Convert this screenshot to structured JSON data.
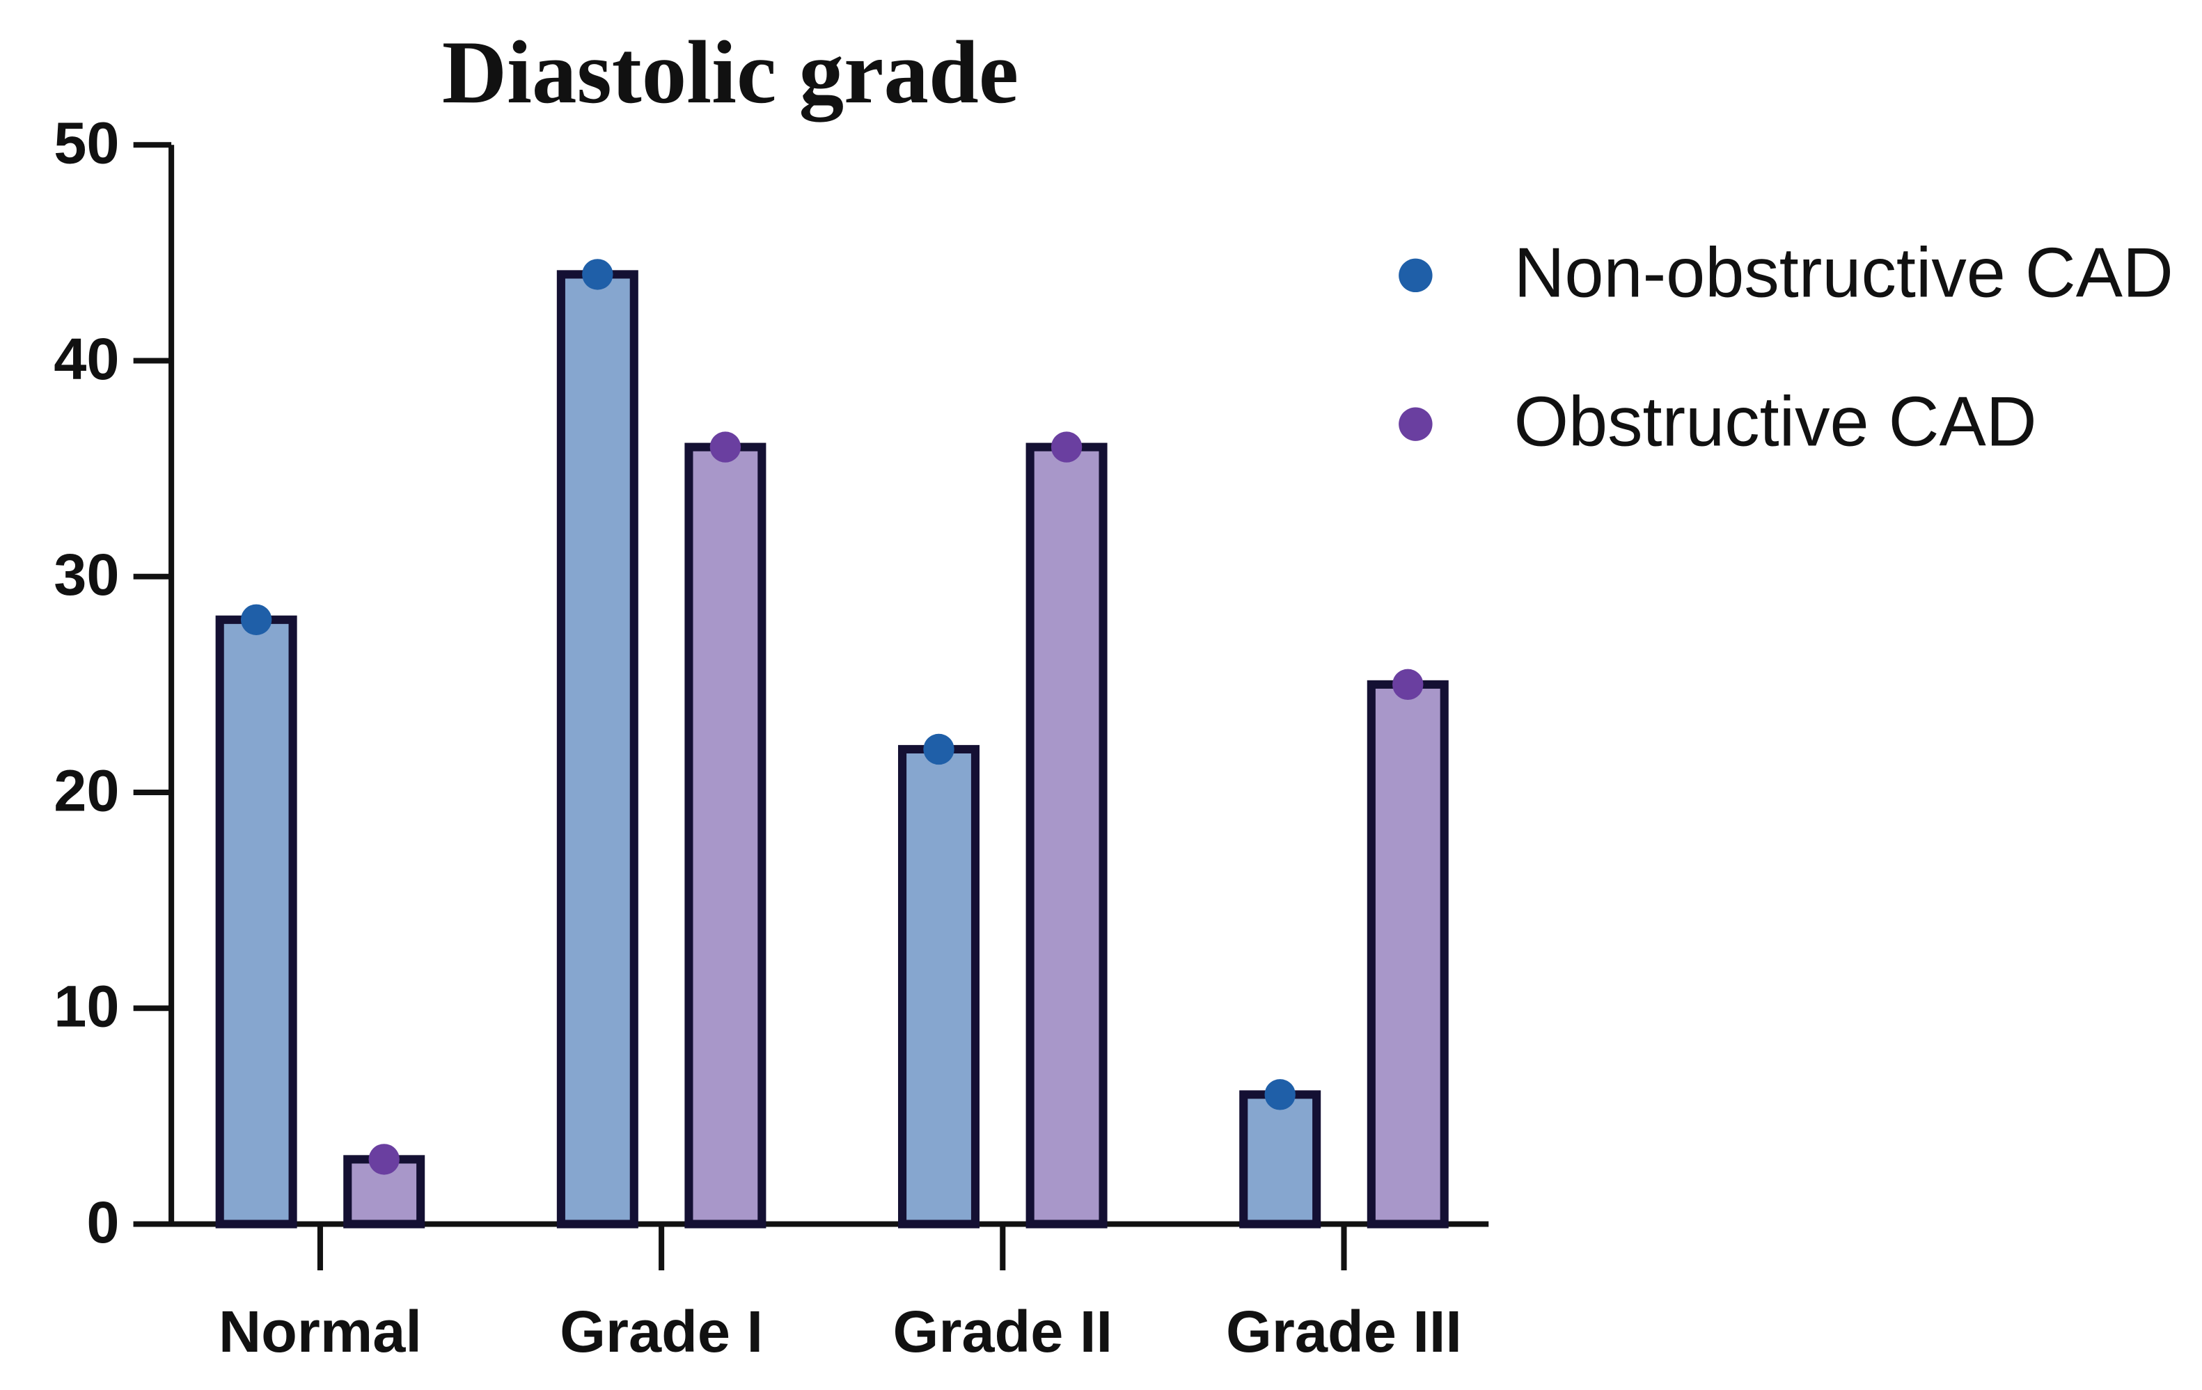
{
  "chart_data": {
    "type": "bar",
    "title": "Diastolic grade",
    "categories": [
      "Normal",
      "Grade I",
      "Grade II",
      "Grade III"
    ],
    "series": [
      {
        "name": "Non-obstructive CAD",
        "color": "#86a6cf",
        "marker_color": "#1f5fa8",
        "values": [
          28,
          44,
          22,
          6
        ]
      },
      {
        "name": "Obstructive CAD",
        "color": "#a897c9",
        "marker_color": "#6a3fa0",
        "values": [
          3,
          36,
          36,
          25
        ]
      }
    ],
    "ylim": [
      0,
      50
    ],
    "yticks": [
      0,
      10,
      20,
      30,
      40,
      50
    ],
    "grid": false,
    "legend": "right",
    "bar_edge_color": "#141033"
  }
}
